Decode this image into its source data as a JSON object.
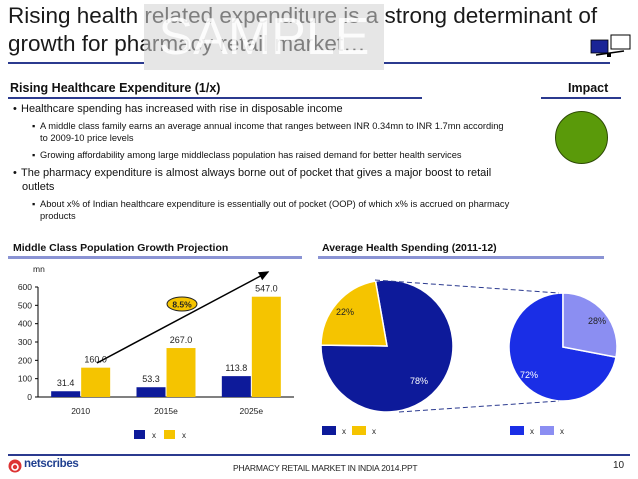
{
  "header": {
    "title": "Rising health related expenditure is a strong determinant of growth for pharmacy retail market…",
    "watermark": "SAMPLE",
    "icon": "monitor-pair-icon"
  },
  "section": {
    "heading": "Rising Healthcare Expenditure (1/x)",
    "impact_label": "Impact",
    "impact_color": "#5a9a0a"
  },
  "bullets": [
    {
      "text": "Healthcare spending has increased with rise in disposable income",
      "sub": [
        "A middle class family earns an average annual income that ranges between INR 0.34mn to INR 1.7mn according to 2009-10 price levels",
        "Growing affordability among large middleclass population has raised demand for better health services"
      ]
    },
    {
      "text": "The pharmacy expenditure is almost always borne out of pocket that gives a major boost to retail outlets",
      "sub": [
        "About x% of Indian healthcare expenditure is essentially out of pocket (OOP) of which x% is accrued on pharmacy products"
      ]
    }
  ],
  "colors": {
    "navy": "#0d1a9a",
    "gold": "#f5c400",
    "blue": "#1a2ee6",
    "lavender": "#8b8ef2",
    "rule": "#2b3a8f"
  },
  "chart_data": [
    {
      "type": "bar",
      "title": "Middle Class Population Growth Projection",
      "ylabel": "mn",
      "xlabel": "",
      "categories": [
        "2010",
        "2015e",
        "2025e"
      ],
      "series": [
        {
          "name": "x",
          "values": [
            31.4,
            53.3,
            113.8
          ],
          "color": "#0d1a9a"
        },
        {
          "name": "x",
          "values": [
            160.0,
            267.0,
            547.0
          ],
          "color": "#f5c400"
        }
      ],
      "value_labels": [
        [
          "31.4",
          "53.3",
          "113.8"
        ],
        [
          "160.0",
          "267.0",
          "547.0"
        ]
      ],
      "ylim": [
        0,
        600
      ],
      "yticks": [
        "0",
        "100",
        "200",
        "300",
        "400",
        "500",
        "600"
      ],
      "annotation": {
        "label": "8.5%",
        "type": "growth-arrow"
      },
      "legend": "bottom",
      "grid": false
    },
    {
      "type": "pie",
      "title": "Average Health Spending (2011-12)",
      "pies": [
        {
          "slices": [
            {
              "name": "x",
              "value": 78,
              "label": "78%",
              "color": "#0d1a9a"
            },
            {
              "name": "x",
              "value": 22,
              "label": "22%",
              "color": "#f5c400"
            }
          ]
        },
        {
          "slices": [
            {
              "name": "x",
              "value": 72,
              "label": "72%",
              "color": "#1a2ee6"
            },
            {
              "name": "x",
              "value": 28,
              "label": "28%",
              "color": "#8b8ef2"
            }
          ]
        }
      ],
      "legend": "bottom"
    }
  ],
  "footer": {
    "logo": "netscribes",
    "doc_name": "PHARMACY RETAIL MARKET IN INDIA 2014.PPT",
    "page_number": "10"
  }
}
